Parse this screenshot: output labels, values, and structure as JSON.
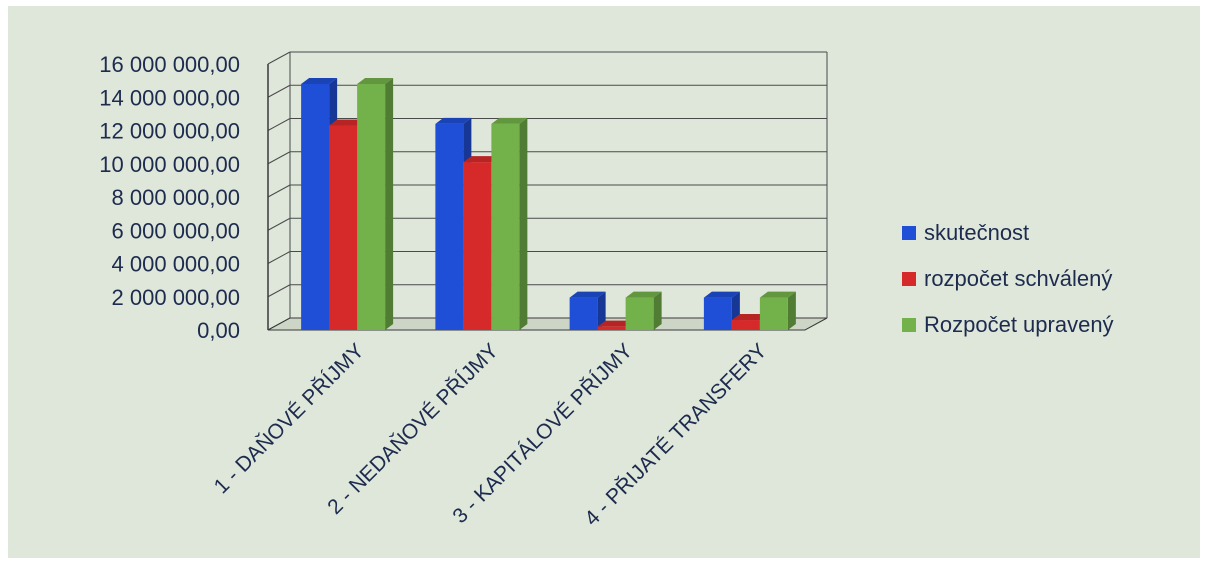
{
  "chart_data": {
    "type": "bar",
    "categories": [
      "1 - DAŇOVÉ PŘÍJMY",
      "2 - NEDAŇOVÉ PŘÍJMY",
      "3 - KAPITÁLOVÉ PŘÍJMY",
      "4 - PŘIJATÉ TRANSFERY"
    ],
    "series": [
      {
        "name": "skutečnost",
        "color": "#1f4fd6",
        "values": [
          14800000,
          12400000,
          1950000,
          1950000
        ]
      },
      {
        "name": "rozpočet schválený",
        "color": "#d62a2a",
        "values": [
          12300000,
          10100000,
          200000,
          600000
        ]
      },
      {
        "name": "Rozpočet upravený",
        "color": "#73b14a",
        "values": [
          14800000,
          12400000,
          1950000,
          1950000
        ]
      }
    ],
    "y_ticks": [
      "0,00",
      "2 000 000,00",
      "4 000 000,00",
      "6 000 000,00",
      "8 000 000,00",
      "10 000 000,00",
      "12 000 000,00",
      "14 000 000,00",
      "16 000 000,00"
    ],
    "ylim": [
      0,
      16000000
    ],
    "grid": true,
    "legend_position": "right",
    "style": "3d-clustered-column",
    "background_color": "#dfe7da"
  }
}
